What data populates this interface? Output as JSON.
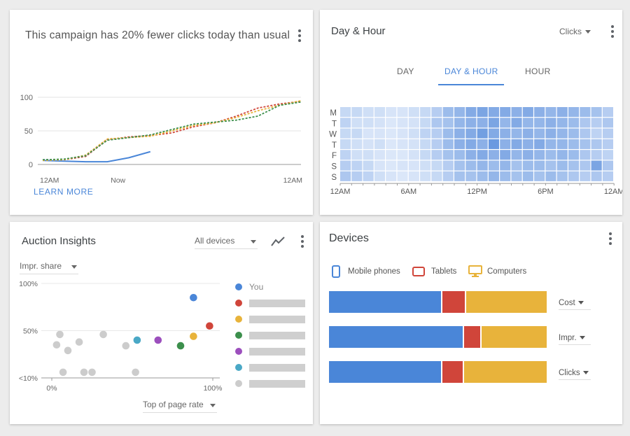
{
  "campaign": {
    "headline": "This campaign has 20% fewer clicks today than usual",
    "learn_more": "LEARN MORE",
    "chart_data": {
      "type": "line",
      "ylim": [
        0,
        100
      ],
      "yticks": [
        "100",
        "50",
        "0"
      ],
      "xticks": [
        "12AM",
        "Now",
        "12AM"
      ],
      "x_hours": [
        0,
        2,
        4,
        6,
        8,
        10,
        12,
        14,
        16,
        18,
        20,
        22,
        24
      ],
      "series": [
        {
          "color": "#4a86d8",
          "style": "solid",
          "values": [
            6,
            5,
            4,
            4,
            10,
            19,
            null,
            null,
            null,
            null,
            null,
            null,
            null
          ]
        },
        {
          "color": "#d0453a",
          "style": "dashed",
          "values": [
            7,
            7,
            12,
            37,
            41,
            43,
            47,
            56,
            62,
            72,
            84,
            90,
            94
          ]
        },
        {
          "color": "#e8b33b",
          "style": "dashed",
          "values": [
            6,
            7,
            14,
            38,
            40,
            42,
            50,
            58,
            62,
            70,
            80,
            88,
            95
          ]
        },
        {
          "color": "#3c8f4c",
          "style": "dashed",
          "values": [
            7,
            8,
            13,
            36,
            40,
            44,
            52,
            60,
            63,
            66,
            72,
            88,
            93
          ]
        }
      ]
    }
  },
  "dayhour": {
    "title": "Day & Hour",
    "metric": "Clicks",
    "tabs": [
      "DAY",
      "DAY & HOUR",
      "HOUR"
    ],
    "active_tab": 1,
    "heatmap": {
      "type": "heatmap",
      "rows": [
        "M",
        "T",
        "W",
        "T",
        "F",
        "S",
        "S"
      ],
      "xticks": [
        "12AM",
        "6AM",
        "12PM",
        "6PM",
        "12AM"
      ],
      "values": [
        [
          0.2,
          0.2,
          0.15,
          0.15,
          0.1,
          0.1,
          0.15,
          0.2,
          0.3,
          0.45,
          0.5,
          0.6,
          0.65,
          0.6,
          0.6,
          0.55,
          0.6,
          0.55,
          0.5,
          0.55,
          0.5,
          0.45,
          0.4,
          0.3
        ],
        [
          0.25,
          0.15,
          0.15,
          0.12,
          0.08,
          0.1,
          0.12,
          0.2,
          0.35,
          0.4,
          0.5,
          0.55,
          0.55,
          0.65,
          0.5,
          0.6,
          0.5,
          0.5,
          0.55,
          0.5,
          0.45,
          0.35,
          0.3,
          0.35
        ],
        [
          0.2,
          0.2,
          0.1,
          0.1,
          0.08,
          0.1,
          0.15,
          0.25,
          0.3,
          0.45,
          0.55,
          0.6,
          0.7,
          0.6,
          0.55,
          0.5,
          0.55,
          0.5,
          0.55,
          0.5,
          0.45,
          0.35,
          0.25,
          0.3
        ],
        [
          0.2,
          0.15,
          0.12,
          0.15,
          0.08,
          0.1,
          0.12,
          0.2,
          0.3,
          0.45,
          0.55,
          0.6,
          0.55,
          0.75,
          0.55,
          0.6,
          0.55,
          0.6,
          0.5,
          0.5,
          0.45,
          0.4,
          0.35,
          0.3
        ],
        [
          0.25,
          0.15,
          0.15,
          0.1,
          0.08,
          0.08,
          0.12,
          0.2,
          0.3,
          0.4,
          0.45,
          0.55,
          0.6,
          0.55,
          0.6,
          0.5,
          0.55,
          0.5,
          0.45,
          0.5,
          0.45,
          0.35,
          0.3,
          0.25
        ],
        [
          0.3,
          0.25,
          0.2,
          0.1,
          0.08,
          0.1,
          0.1,
          0.15,
          0.2,
          0.3,
          0.4,
          0.45,
          0.5,
          0.45,
          0.5,
          0.4,
          0.45,
          0.45,
          0.4,
          0.45,
          0.4,
          0.35,
          0.65,
          0.35
        ],
        [
          0.35,
          0.3,
          0.25,
          0.15,
          0.1,
          0.08,
          0.1,
          0.15,
          0.2,
          0.3,
          0.4,
          0.4,
          0.45,
          0.5,
          0.45,
          0.4,
          0.45,
          0.4,
          0.45,
          0.4,
          0.35,
          0.3,
          0.35,
          0.3
        ]
      ]
    }
  },
  "auction": {
    "title": "Auction Insights",
    "device_filter": "All devices",
    "y_metric": "Impr. share",
    "x_metric": "Top of page rate",
    "legend_you": "You",
    "chart_data": {
      "type": "scatter",
      "yticks": [
        "100%",
        "50%",
        "<10%"
      ],
      "xticks": [
        "0%",
        "100%"
      ],
      "xlim": [
        0,
        100
      ],
      "ylim": [
        0,
        100
      ],
      "points": [
        {
          "x": 88,
          "y": 85,
          "color": "#4a86d8"
        },
        {
          "x": 98,
          "y": 55,
          "color": "#d0453a"
        },
        {
          "x": 88,
          "y": 44,
          "color": "#e8b33b"
        },
        {
          "x": 80,
          "y": 34,
          "color": "#3c8f4c"
        },
        {
          "x": 66,
          "y": 40,
          "color": "#9c4fbd"
        },
        {
          "x": 53,
          "y": 40,
          "color": "#4aa8c6"
        },
        {
          "x": 5,
          "y": 46,
          "color": "#cccccc"
        },
        {
          "x": 3,
          "y": 35,
          "color": "#cccccc"
        },
        {
          "x": 10,
          "y": 29,
          "color": "#cccccc"
        },
        {
          "x": 17,
          "y": 38,
          "color": "#cccccc"
        },
        {
          "x": 32,
          "y": 46,
          "color": "#cccccc"
        },
        {
          "x": 46,
          "y": 34,
          "color": "#cccccc"
        },
        {
          "x": 7,
          "y": 6,
          "color": "#cccccc"
        },
        {
          "x": 20,
          "y": 6,
          "color": "#cccccc"
        },
        {
          "x": 25,
          "y": 6,
          "color": "#cccccc"
        },
        {
          "x": 52,
          "y": 6,
          "color": "#cccccc"
        }
      ]
    },
    "legend_colors": [
      "#4a86d8",
      "#d0453a",
      "#e8b33b",
      "#3c8f4c",
      "#9c4fbd",
      "#4aa8c6",
      "#cccccc"
    ]
  },
  "devices": {
    "title": "Devices",
    "legend": [
      {
        "label": "Mobile phones",
        "color": "#4a86d8",
        "icon": "phone-icon"
      },
      {
        "label": "Tablets",
        "color": "#d0453a",
        "icon": "tablet-icon"
      },
      {
        "label": "Computers",
        "color": "#e8b33b",
        "icon": "computer-icon"
      }
    ],
    "bars": [
      {
        "metric": "Cost",
        "shares": [
          52,
          11,
          37
        ]
      },
      {
        "metric": "Impr.",
        "shares": [
          62,
          8,
          30
        ]
      },
      {
        "metric": "Clicks",
        "shares": [
          52,
          10,
          38
        ]
      }
    ]
  }
}
